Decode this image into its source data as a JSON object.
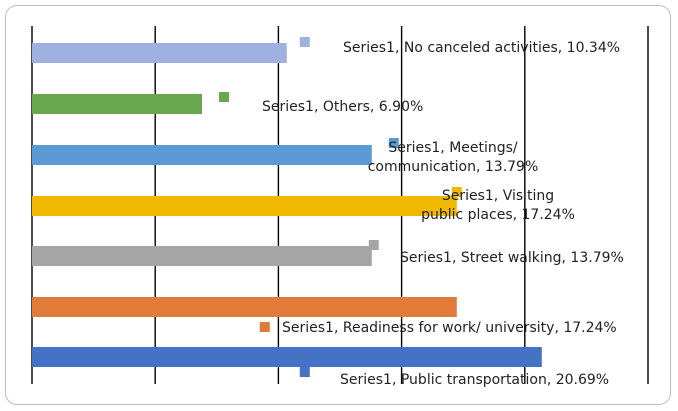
{
  "chart_data": {
    "type": "bar",
    "orientation": "horizontal",
    "categories": [
      "No canceled activities",
      "Others",
      "Meetings/ communication",
      "Visiting public places",
      "Street walking",
      "Readiness for work/ university",
      "Public transportation"
    ],
    "series": [
      {
        "name": "Series1",
        "values": [
          10.34,
          6.9,
          13.79,
          17.24,
          13.79,
          17.24,
          20.69
        ]
      }
    ],
    "data_labels": [
      [
        "Series1, No canceled activities, 10.34%"
      ],
      [
        "Series1, Others, 6.90%"
      ],
      [
        "Series1, Meetings/",
        "communication, 13.79%"
      ],
      [
        "Series1, Visiting",
        "public places, 17.24%"
      ],
      [
        "Series1, Street walking, 13.79%"
      ],
      [
        "Series1, Readiness for work/ university, 17.24%"
      ],
      [
        "Series1, Public transportation, 20.69%"
      ]
    ],
    "colors": [
      "#9eb1e0",
      "#6aa84f",
      "#5b9bd5",
      "#f0b800",
      "#a5a5a5",
      "#e07b39",
      "#4472c4"
    ],
    "xlim": [
      0,
      25
    ],
    "grid": true,
    "legend": "none",
    "title": "",
    "xlabel": "",
    "ylabel": ""
  }
}
